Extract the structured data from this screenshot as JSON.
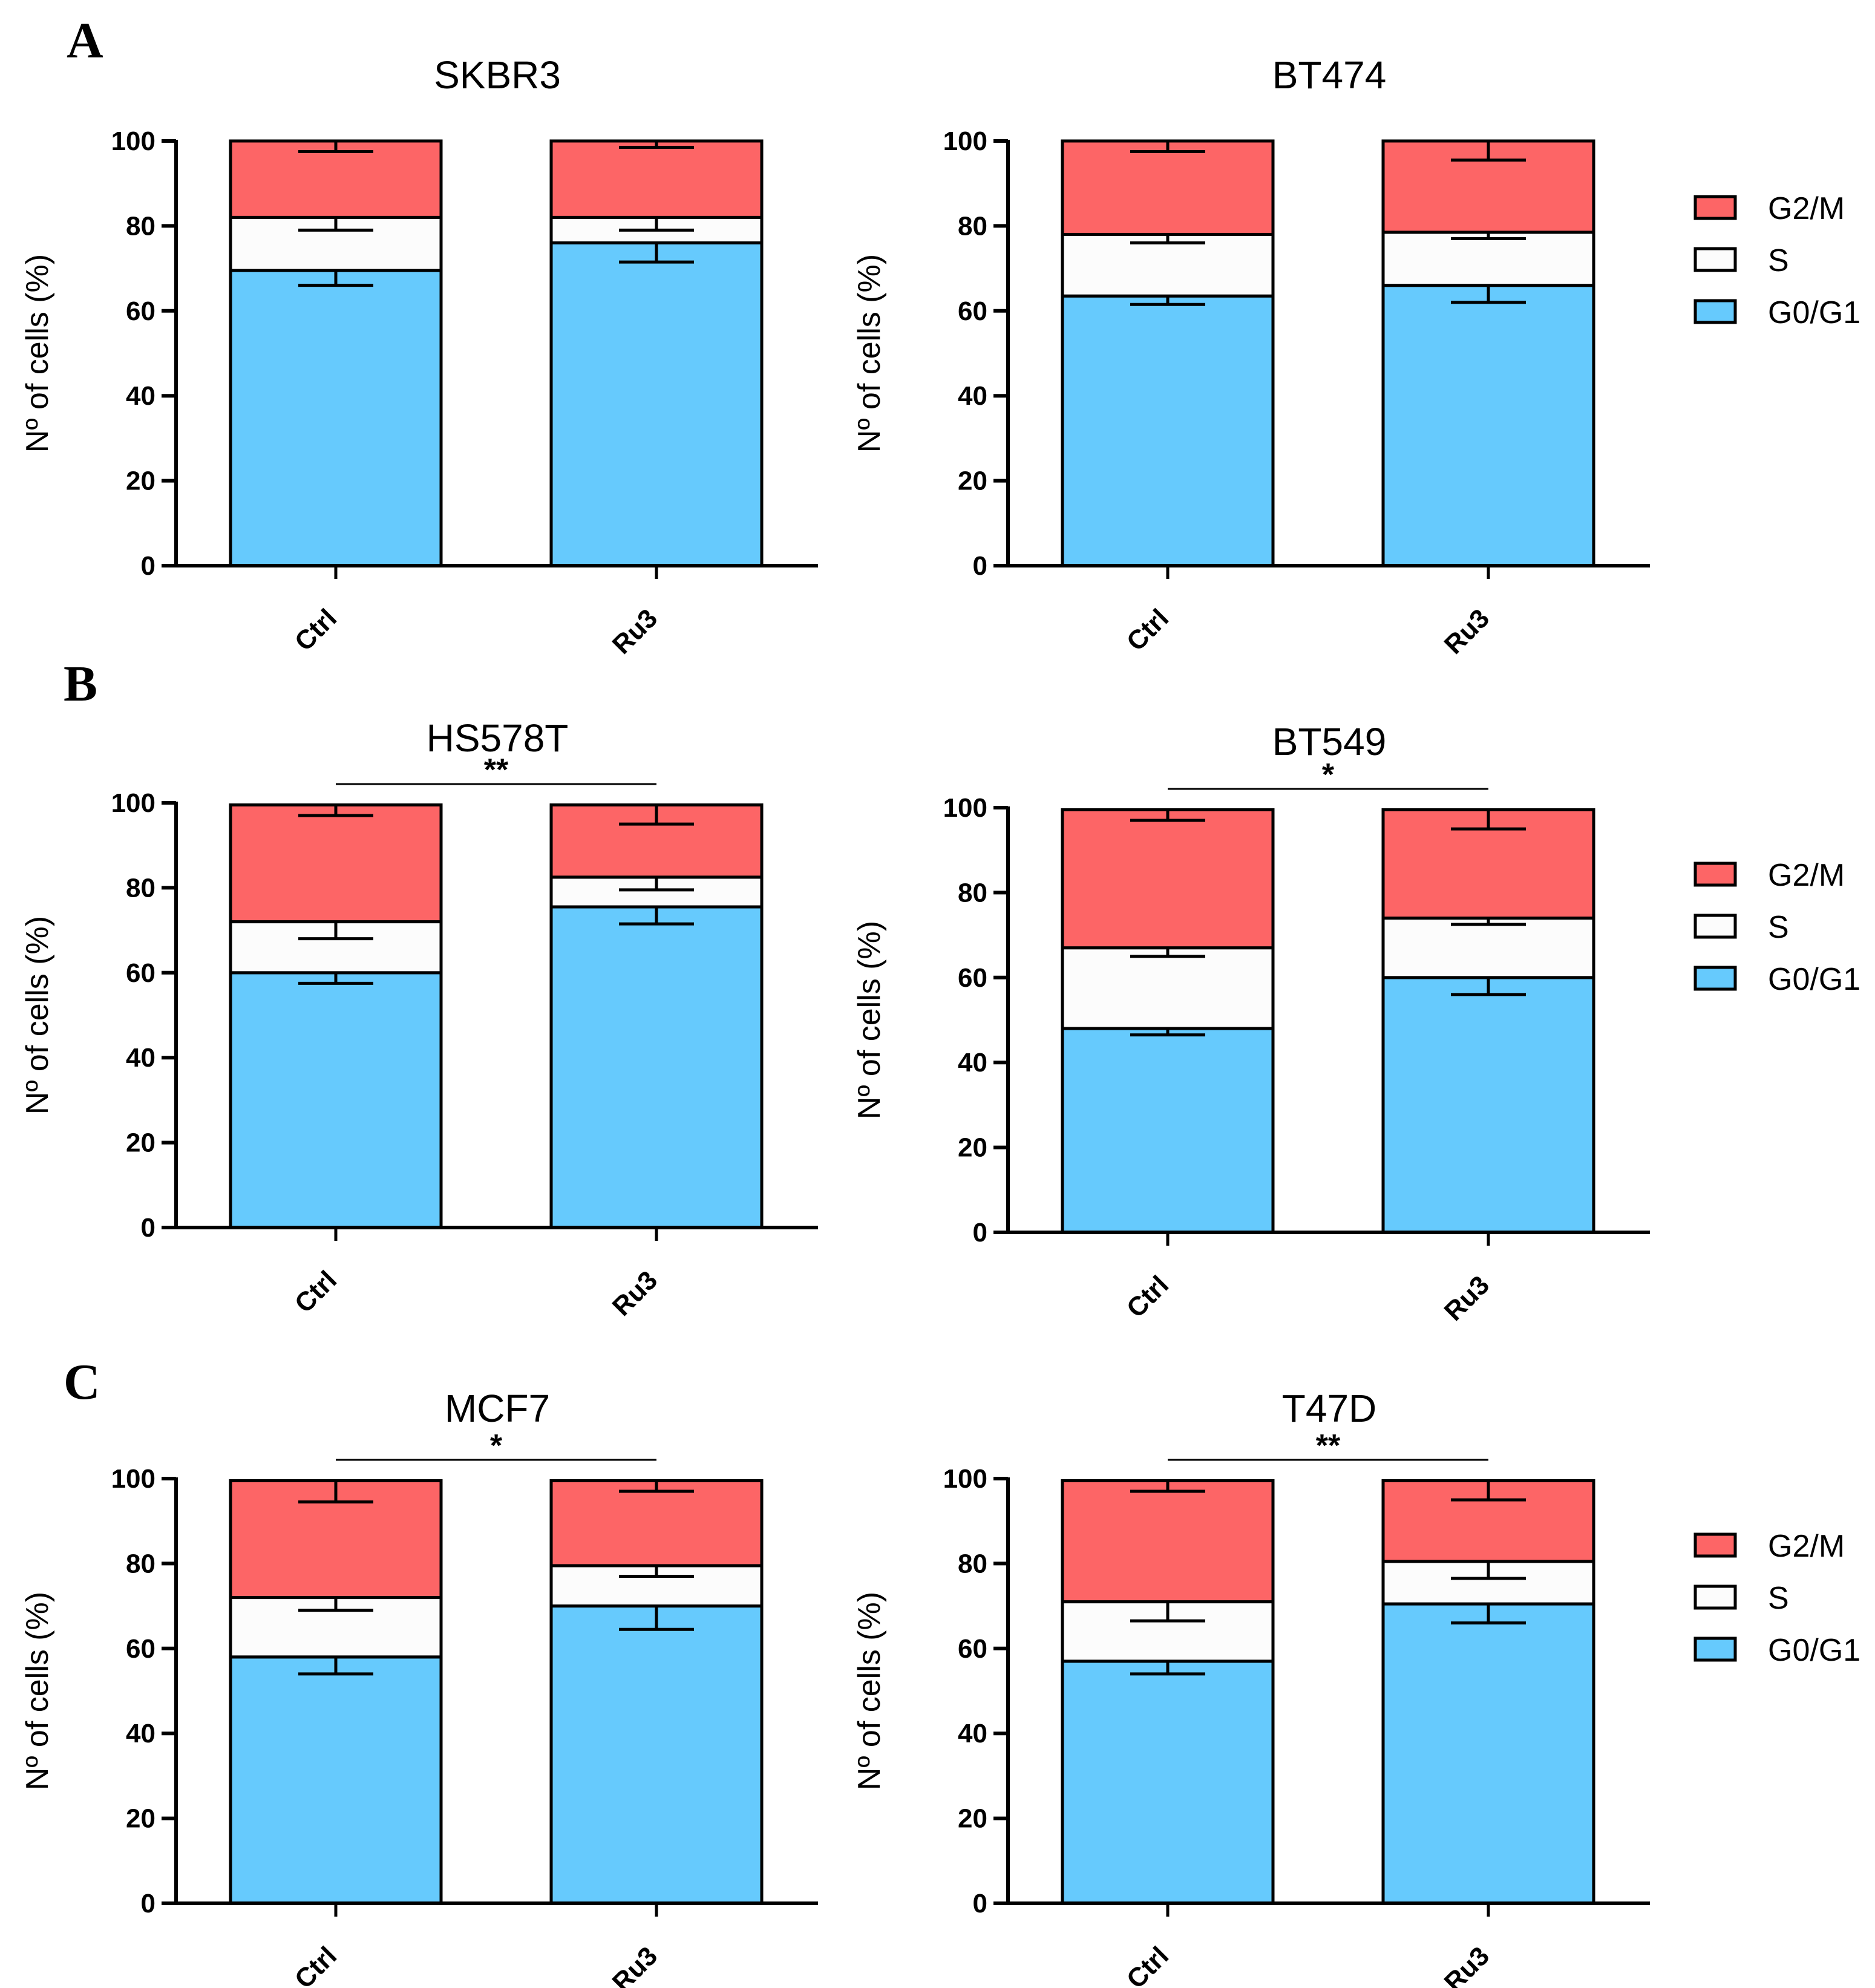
{
  "colors": {
    "G2/M": "#fd6566",
    "S": "#fcfcfc",
    "G0/G1": "#66cafd"
  },
  "panels": [
    "A",
    "B",
    "C"
  ],
  "chart_data": [
    {
      "type": "bar",
      "stacked": true,
      "panel": "A",
      "title": "SKBR3",
      "ylabel": "Nº of cells (%)",
      "ylim": [
        0,
        100
      ],
      "yticks": [
        0,
        20,
        40,
        60,
        80,
        100
      ],
      "categories": [
        "Ctrl",
        "Ru3"
      ],
      "series": [
        {
          "name": "G0/G1",
          "values": [
            69.5,
            76
          ],
          "errors": [
            3.5,
            4.5
          ]
        },
        {
          "name": "S",
          "values": [
            12.5,
            6
          ],
          "errors": [
            3,
            3
          ]
        },
        {
          "name": "G2/M",
          "values": [
            18,
            18
          ],
          "errors": [
            2.5,
            1.5
          ]
        }
      ],
      "legend": false,
      "significance": null
    },
    {
      "type": "bar",
      "stacked": true,
      "panel": "A",
      "title": "BT474",
      "ylabel": "Nº of cells (%)",
      "ylim": [
        0,
        100
      ],
      "yticks": [
        0,
        20,
        40,
        60,
        80,
        100
      ],
      "categories": [
        "Ctrl",
        "Ru3"
      ],
      "series": [
        {
          "name": "G0/G1",
          "values": [
            63.5,
            66
          ],
          "errors": [
            2,
            4
          ]
        },
        {
          "name": "S",
          "values": [
            14.5,
            12.5
          ],
          "errors": [
            2,
            1.5
          ]
        },
        {
          "name": "G2/M",
          "values": [
            22,
            21.5
          ],
          "errors": [
            2.5,
            4.5
          ]
        }
      ],
      "legend": true,
      "legend_items": [
        "G2/M",
        "S",
        "G0/G1"
      ],
      "significance": null
    },
    {
      "type": "bar",
      "stacked": true,
      "panel": "B",
      "title": "HS578T",
      "ylabel": "Nº of cells (%)",
      "ylim": [
        0,
        100
      ],
      "yticks": [
        0,
        20,
        40,
        60,
        80,
        100
      ],
      "categories": [
        "Ctrl",
        "Ru3"
      ],
      "series": [
        {
          "name": "G0/G1",
          "values": [
            60,
            75.5
          ],
          "errors": [
            2.5,
            4
          ]
        },
        {
          "name": "S",
          "values": [
            12,
            7
          ],
          "errors": [
            4,
            3
          ]
        },
        {
          "name": "G2/M",
          "values": [
            27.5,
            17
          ],
          "errors": [
            2.5,
            4.5
          ]
        }
      ],
      "legend": false,
      "significance": "**"
    },
    {
      "type": "bar",
      "stacked": true,
      "panel": "B",
      "title": "BT549",
      "ylabel": "Nº of cells (%)",
      "ylim": [
        0,
        100
      ],
      "yticks": [
        0,
        20,
        40,
        60,
        80,
        100
      ],
      "categories": [
        "Ctrl",
        "Ru3"
      ],
      "series": [
        {
          "name": "G0/G1",
          "values": [
            48,
            60
          ],
          "errors": [
            1.5,
            4
          ]
        },
        {
          "name": "S",
          "values": [
            19,
            14
          ],
          "errors": [
            2,
            1.5
          ]
        },
        {
          "name": "G2/M",
          "values": [
            32.5,
            25.5
          ],
          "errors": [
            2.5,
            4.5
          ]
        }
      ],
      "legend": true,
      "legend_items": [
        "G2/M",
        "S",
        "G0/G1"
      ],
      "significance": "*"
    },
    {
      "type": "bar",
      "stacked": true,
      "panel": "C",
      "title": "MCF7",
      "ylabel": "Nº of cells (%)",
      "ylim": [
        0,
        100
      ],
      "yticks": [
        0,
        20,
        40,
        60,
        80,
        100
      ],
      "categories": [
        "Ctrl",
        "Ru3"
      ],
      "series": [
        {
          "name": "G0/G1",
          "values": [
            58,
            70
          ],
          "errors": [
            4,
            5.5
          ]
        },
        {
          "name": "S",
          "values": [
            14,
            9.5
          ],
          "errors": [
            3,
            2.5
          ]
        },
        {
          "name": "G2/M",
          "values": [
            27.5,
            20
          ],
          "errors": [
            5,
            2.5
          ]
        }
      ],
      "legend": false,
      "significance": "*"
    },
    {
      "type": "bar",
      "stacked": true,
      "panel": "C",
      "title": "T47D",
      "ylabel": "Nº of cells (%)",
      "ylim": [
        0,
        100
      ],
      "yticks": [
        0,
        20,
        40,
        60,
        80,
        100
      ],
      "categories": [
        "Ctrl",
        "Ru3"
      ],
      "series": [
        {
          "name": "G0/G1",
          "values": [
            57,
            70.5
          ],
          "errors": [
            3,
            4.5
          ]
        },
        {
          "name": "S",
          "values": [
            14,
            10
          ],
          "errors": [
            4.5,
            4
          ]
        },
        {
          "name": "G2/M",
          "values": [
            28.5,
            19
          ],
          "errors": [
            2.5,
            4.5
          ]
        }
      ],
      "legend": true,
      "legend_items": [
        "G2/M",
        "S",
        "G0/G1"
      ],
      "significance": "**"
    }
  ]
}
